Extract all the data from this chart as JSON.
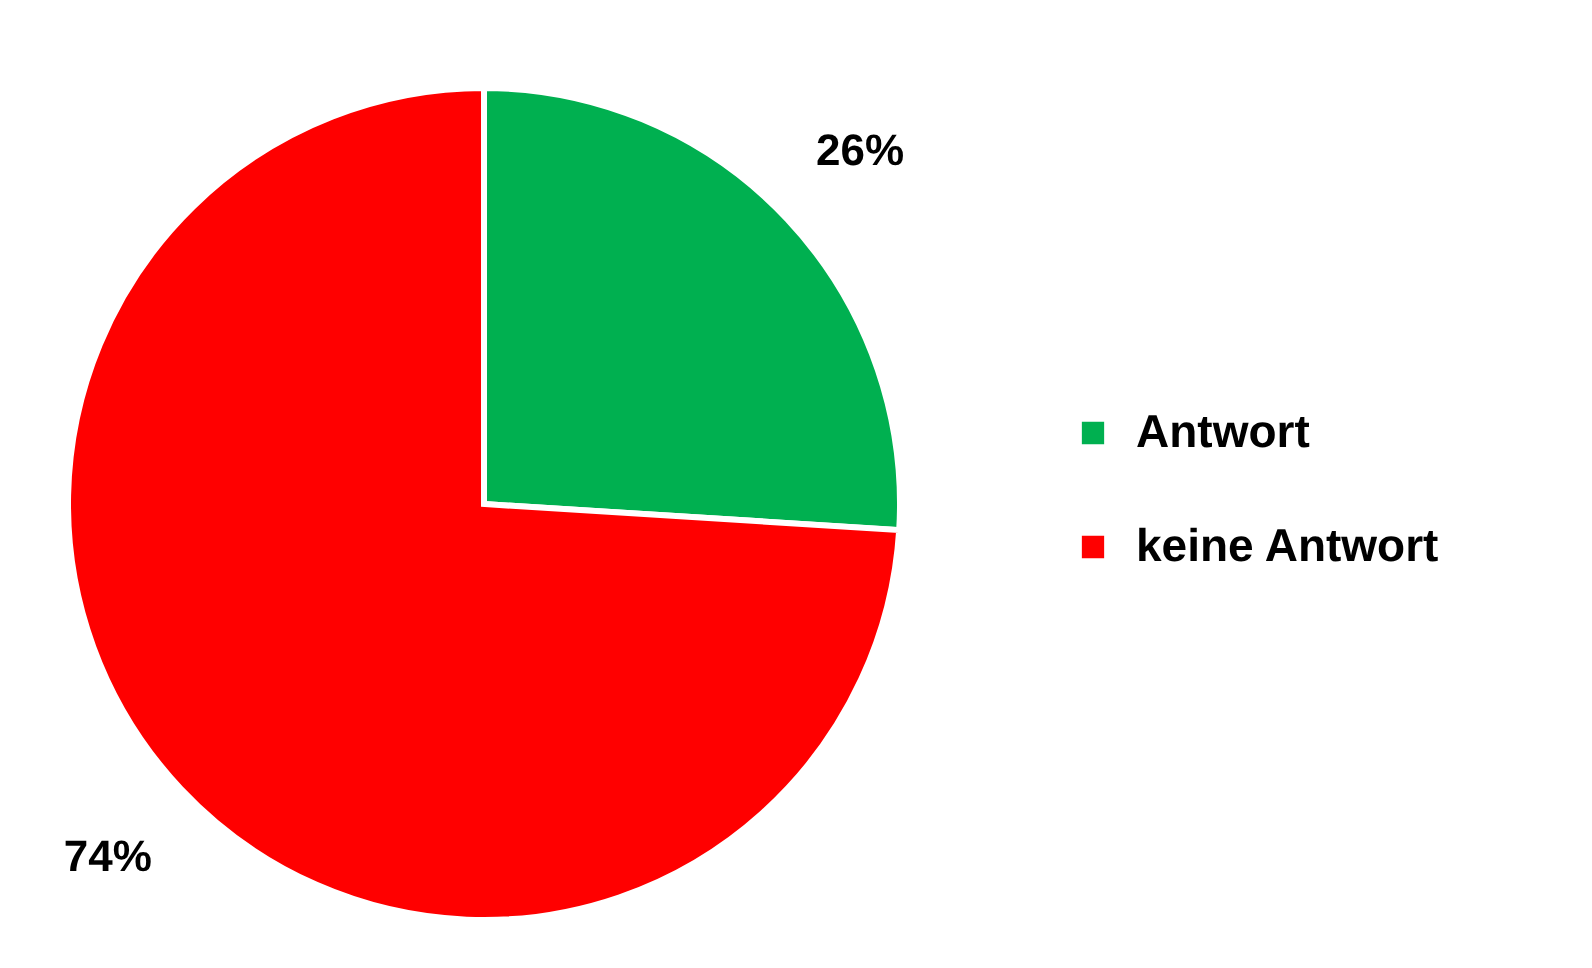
{
  "chart_data": {
    "type": "pie",
    "categories": [
      "Antwort",
      "keine Antwort"
    ],
    "values": [
      26,
      74
    ],
    "colors": [
      "#00b050",
      "#ff0000"
    ],
    "value_labels": [
      "26%",
      "74%"
    ],
    "legend": "right"
  }
}
